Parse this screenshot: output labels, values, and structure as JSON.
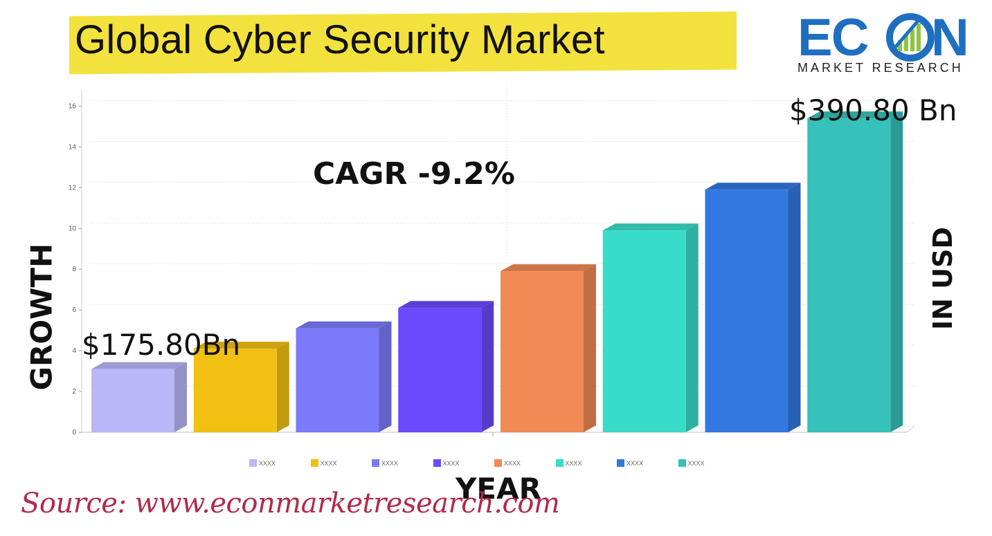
{
  "header": {
    "title": "Global Cyber Security Market",
    "logo_main": "ECON",
    "logo_sub": "MARKET RESEARCH"
  },
  "annotations": {
    "cagr": "CAGR -9.2%",
    "first_value": "$175.80Bn",
    "last_value": "$390.80 Bn",
    "y_side_label": "GROWTH",
    "right_side_label": "IN USD",
    "x_label": "YEAR",
    "source": "Source:  www.econmarketresearch.com"
  },
  "colors": {
    "title_banner": "#f3e23d",
    "logo_blue": "#1f6fc0",
    "logo_green": "#8cc63f",
    "source_text": "#b12a4a"
  },
  "chart_data": {
    "type": "bar",
    "categories": [
      "XXXX",
      "XXXX",
      "XXXX",
      "XXXX",
      "XXXX",
      "XXXX",
      "XXXX",
      "XXXX"
    ],
    "values": [
      3.1,
      4.1,
      5.1,
      6.1,
      7.9,
      9.9,
      11.9,
      15.4
    ],
    "bar_colors": [
      "#b8b8f8",
      "#f2c012",
      "#7a7afa",
      "#6a4afc",
      "#f28a55",
      "#38dcc8",
      "#3278e0",
      "#36c2ba"
    ],
    "ylim": [
      0,
      17
    ],
    "yticks": [
      0,
      2,
      4,
      6,
      8,
      10,
      12,
      14,
      16
    ],
    "grid": true,
    "legend": "bottom",
    "style": "3d"
  }
}
